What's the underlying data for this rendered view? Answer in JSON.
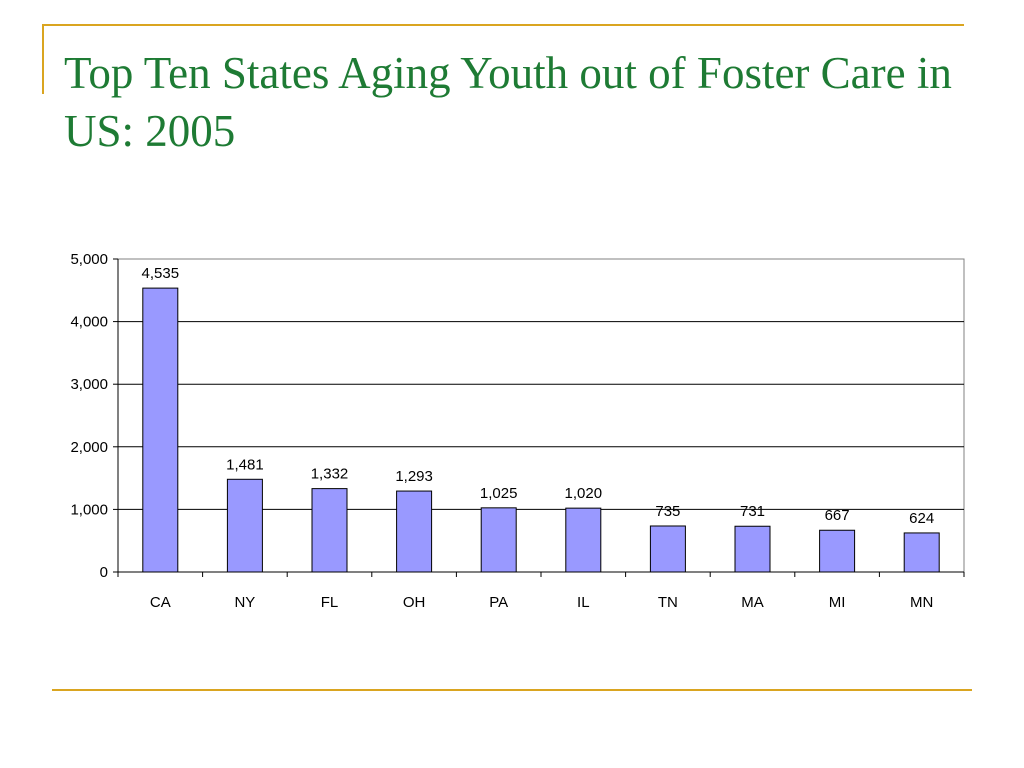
{
  "slide": {
    "title": "Top Ten States Aging Youth out of Foster Care in US: 2005",
    "accent_color": "#DAA520",
    "title_color": "#1E7B34"
  },
  "chart_data": {
    "type": "bar",
    "categories": [
      "CA",
      "NY",
      "FL",
      "OH",
      "PA",
      "IL",
      "TN",
      "MA",
      "MI",
      "MN"
    ],
    "values": [
      4535,
      1481,
      1332,
      1293,
      1025,
      1020,
      735,
      731,
      667,
      624
    ],
    "data_labels": [
      "4,535",
      "1,481",
      "1,332",
      "1,293",
      "1,025",
      "1,020",
      "735",
      "731",
      "667",
      "624"
    ],
    "ylim": [
      0,
      5000
    ],
    "yticks": [
      0,
      1000,
      2000,
      3000,
      4000,
      5000
    ],
    "ytick_labels": [
      "0",
      "1,000",
      "2,000",
      "3,000",
      "4,000",
      "5,000"
    ],
    "grid": true,
    "bar_color": "#9999FF",
    "legend": "none"
  }
}
